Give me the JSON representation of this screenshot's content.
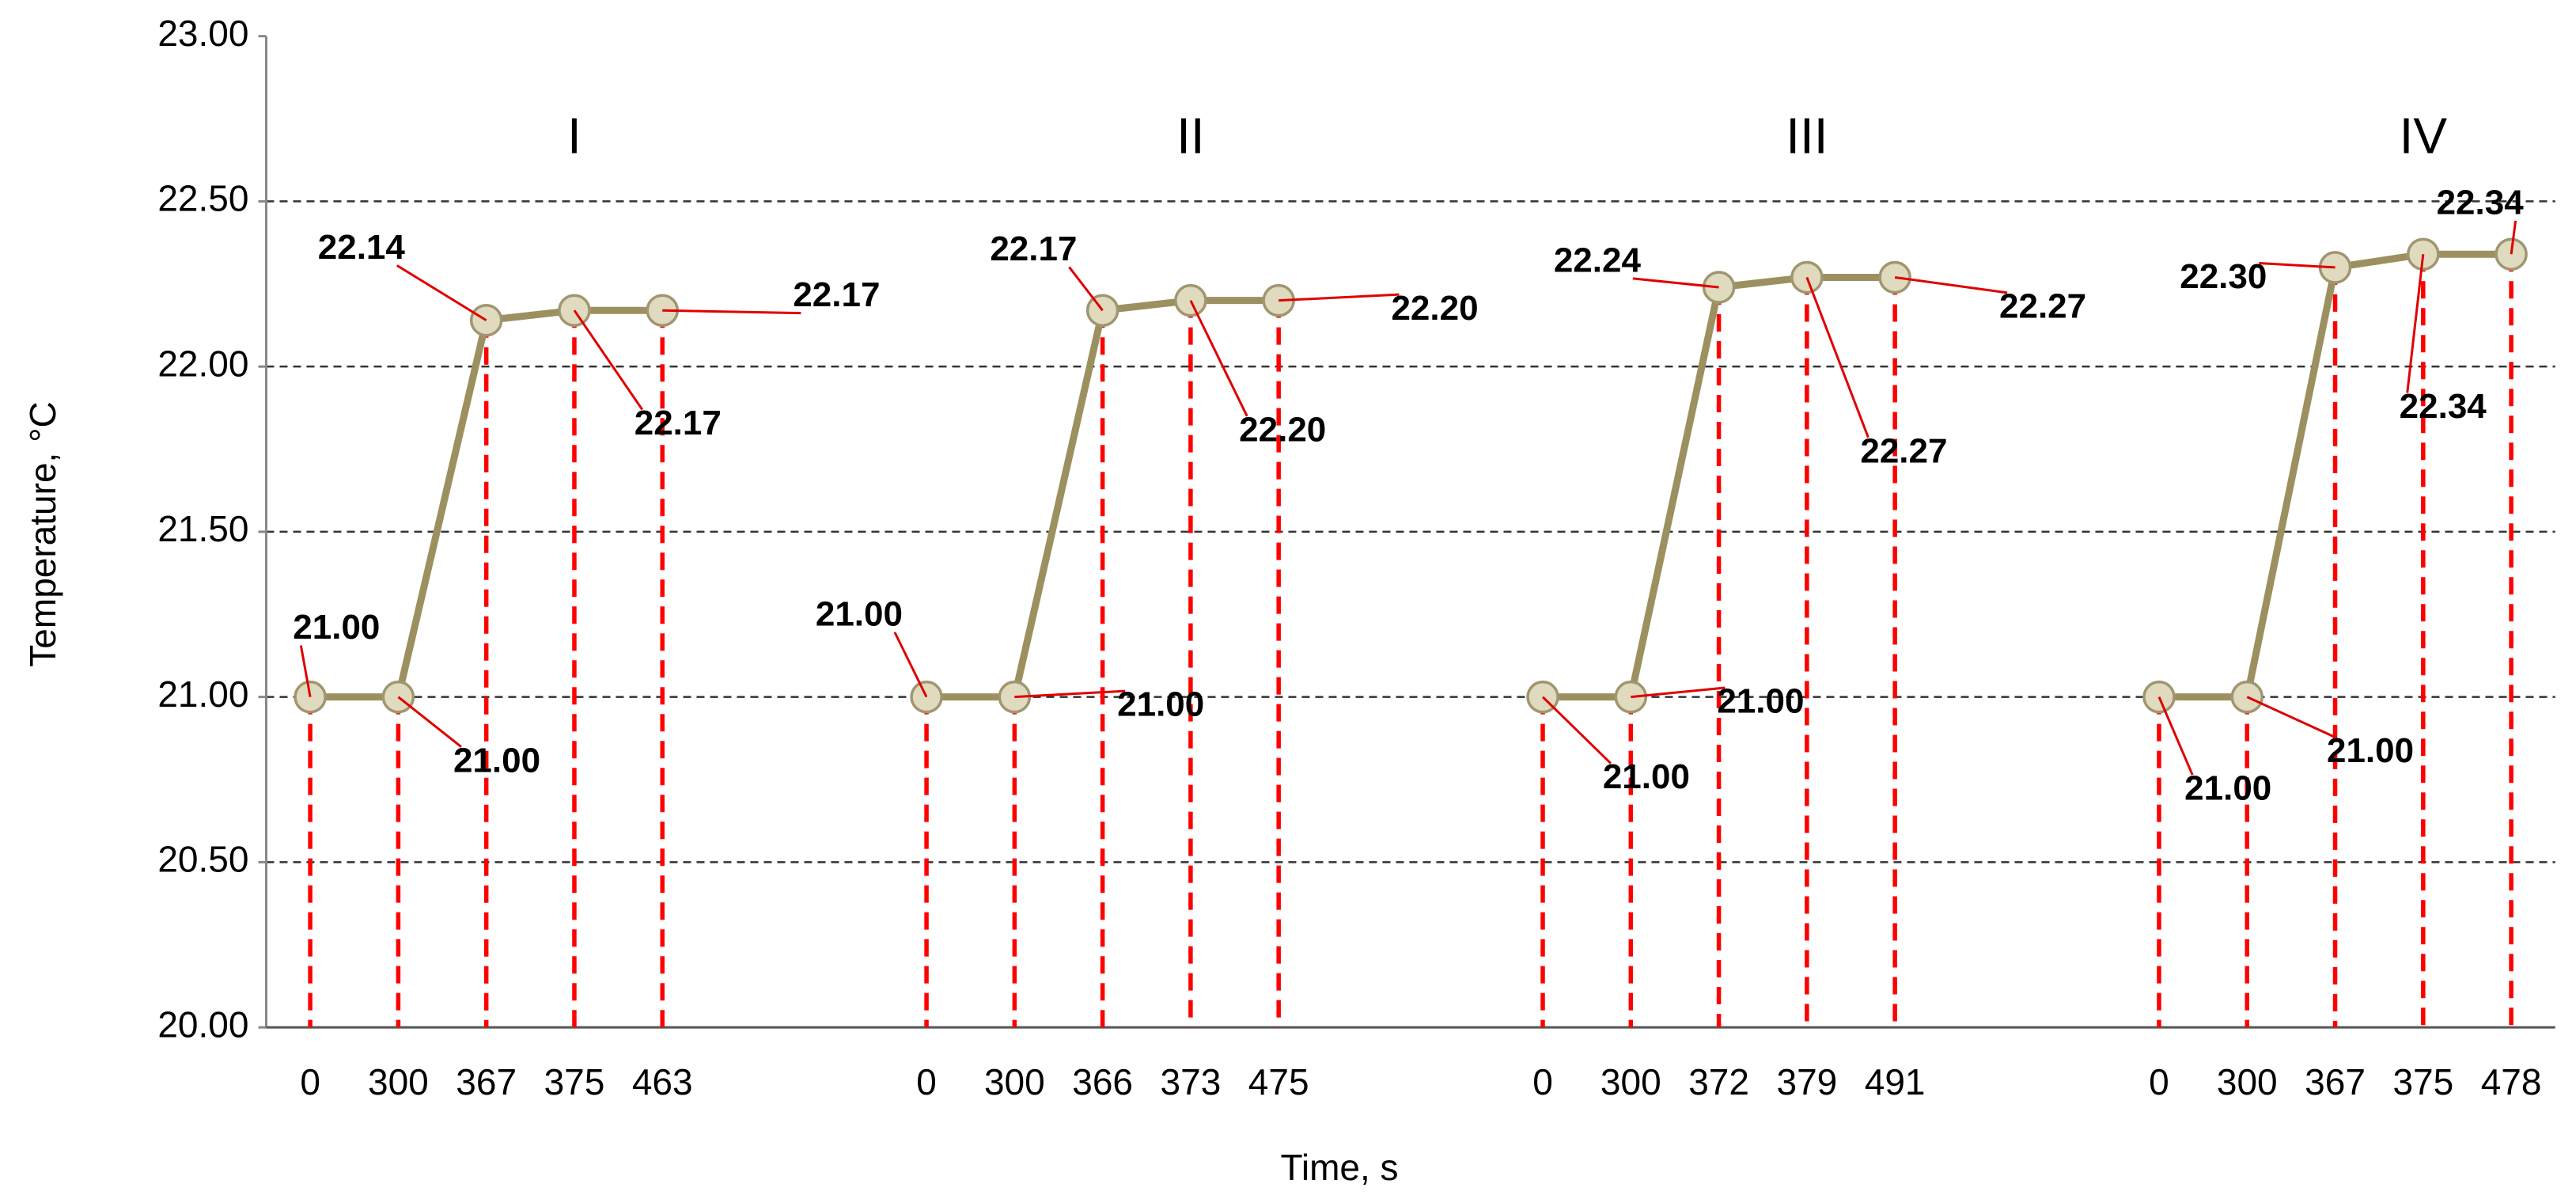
{
  "chart_data": {
    "type": "line",
    "x_label": "Time, s",
    "y_label": "Temperature, °C",
    "categories": [
      "0",
      "300",
      "367",
      "375",
      "463",
      null,
      null,
      "0",
      "300",
      "366",
      "373",
      "475",
      null,
      null,
      "0",
      "300",
      "372",
      "379",
      "491",
      null,
      null,
      "0",
      "300",
      "367",
      "375",
      "478"
    ],
    "values": [
      21.0,
      21.0,
      22.14,
      22.17,
      22.17,
      null,
      null,
      21.0,
      21.0,
      22.17,
      22.2,
      22.2,
      null,
      null,
      21.0,
      21.0,
      22.24,
      22.27,
      22.27,
      null,
      null,
      21.0,
      21.0,
      22.3,
      22.34,
      22.34
    ],
    "value_labels": [
      "21.00",
      "21.00",
      "22.14",
      "22.17",
      "22.17",
      null,
      null,
      "21.00",
      "21.00",
      "22.17",
      "22.20",
      "22.20",
      null,
      null,
      "21.00",
      "21.00",
      "22.24",
      "22.27",
      "22.27",
      null,
      null,
      "21.00",
      "21.00",
      "22.30",
      "22.34",
      "22.34"
    ],
    "annotations": [
      "I",
      "II",
      "III",
      "IV"
    ],
    "color": "#9d9060",
    "marker_fill": "#e0dbbf",
    "drop_line_color": "#ff0000",
    "ylim": [
      20,
      23
    ],
    "yticks": [
      {
        "value": 20,
        "label": "20.00"
      },
      {
        "value": 20.5,
        "label": "20.50"
      },
      {
        "value": 21,
        "label": "21.00"
      },
      {
        "value": 21.5,
        "label": "21.50"
      },
      {
        "value": 22,
        "label": "22.00"
      },
      {
        "value": 22.5,
        "label": "22.50"
      },
      {
        "value": 23,
        "label": "23.00"
      }
    ],
    "grid": true
  }
}
